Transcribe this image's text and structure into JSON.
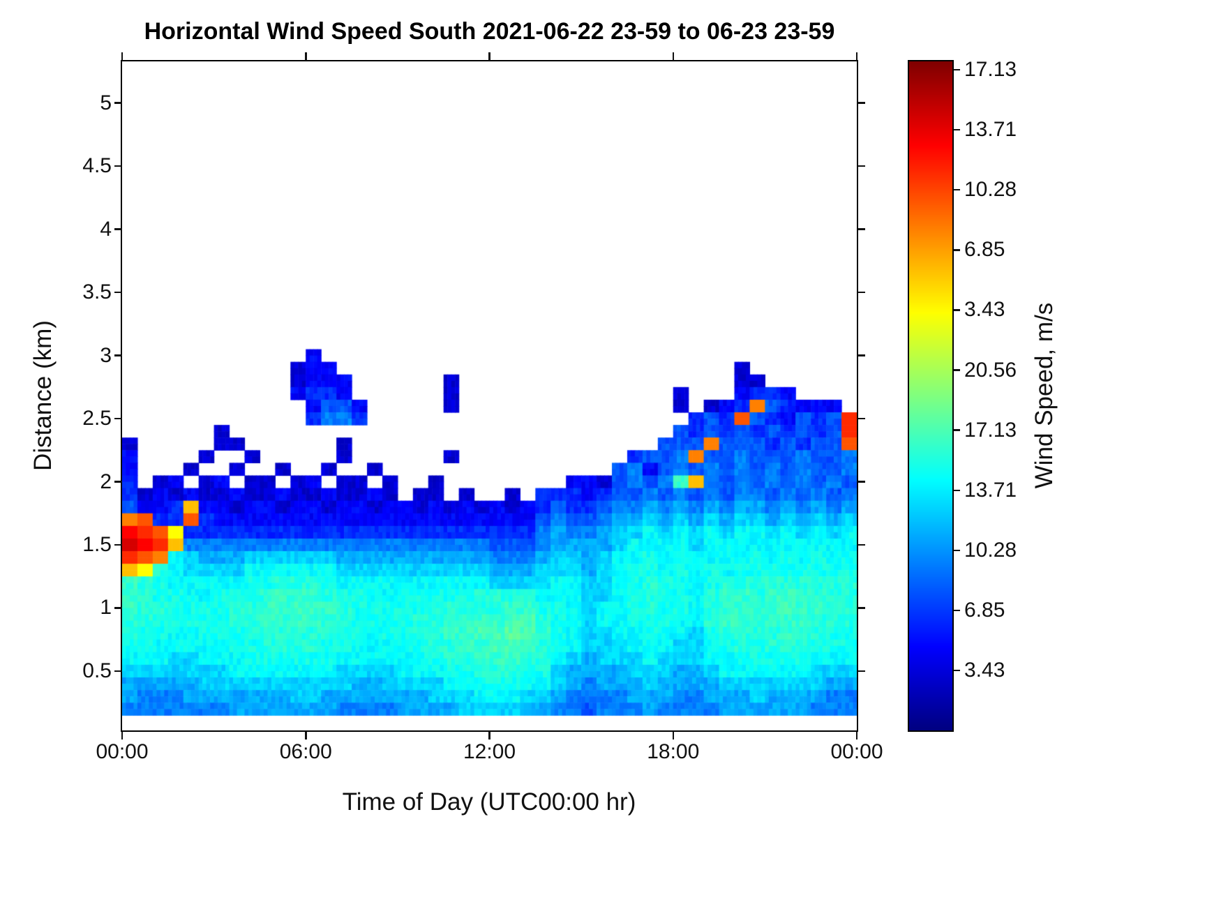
{
  "chart_data": {
    "type": "heatmap",
    "title": "Horizontal Wind Speed South 2021-06-22 23-59 to 06-23 23-59",
    "xlabel": "Time of Day (UTC00:00 hr)",
    "ylabel": "Distance (km)",
    "xlim": [
      0,
      24
    ],
    "ylim": [
      0.03,
      5.33
    ],
    "xtick_values": [
      0,
      6,
      12,
      18,
      24
    ],
    "xtick_labels": [
      "00:00",
      "06:00",
      "12:00",
      "18:00",
      "00:00"
    ],
    "ytick_values": [
      0.5,
      1,
      1.5,
      2,
      2.5,
      3,
      3.5,
      4,
      4.5,
      5
    ],
    "ytick_labels": [
      "0.5",
      "1",
      "1.5",
      "2",
      "2.5",
      "3",
      "3.5",
      "4",
      "4.5",
      "5"
    ],
    "grid_on": false,
    "legend": "colorbar-right",
    "colormap": "jet",
    "color_scale": {
      "vmin": 0,
      "vmax": 24,
      "units": "m/s"
    },
    "colorbar": {
      "label": "Wind Speed, m/s",
      "tick_labels_top_to_bottom": [
        "17.13",
        "13.71",
        "10.28",
        "6.85",
        "3.43",
        "20.56",
        "17.13",
        "13.71",
        "10.28",
        "6.85",
        "3.43"
      ],
      "tick_top_fraction": 0.0125,
      "tick_step_fraction": 0.0898
    },
    "grid": {
      "time_bins": 48,
      "time_bin_hours": 0.5,
      "distance_bin_km": 0.1,
      "no_data_char": ".",
      "value_encoding": "each char is one 30-min time bin; '.' = no data (white); otherwise wind speed in m/s from char_values",
      "char_values": {
        "0": 0,
        "1": 1,
        "2": 2,
        "3": 3,
        "4": 4,
        "5": 5,
        "6": 6,
        "7": 7,
        "8": 8,
        "9": 9,
        "a": 9.4,
        "b": 9.8,
        "c": 10.2,
        "d": 10.6,
        "e": 11,
        "f": 13,
        "g": 15,
        "h": 16.5,
        "i": 18,
        "j": 19,
        "k": 20,
        "l": 21,
        "m": 22
      },
      "rows": [
        {
          "km": 3.0,
          "cells": [
            "............",
            "3...........",
            "............",
            "............"
          ]
        },
        {
          "km": 2.9,
          "cells": [
            "...........2",
            "33..........",
            "............",
            "....2......."
          ]
        },
        {
          "km": 2.8,
          "cells": [
            "...........2",
            "333......2..",
            "............",
            "....22......"
          ]
        },
        {
          "km": 2.7,
          "cells": [
            "...........3",
            "443......2..",
            "............",
            "2...3443...."
          ]
        },
        {
          "km": 2.6,
          "cells": [
            "............",
            "3553.....2..",
            "............",
            "2.234i54333."
          ]
        },
        {
          "km": 2.5,
          "cells": [
            "............",
            "4664........",
            "............",
            ".454j543545k"
          ]
        },
        {
          "km": 2.4,
          "cells": [
            "......2.....",
            "............",
            "............",
            "54545454545k"
          ]
        },
        {
          "km": 2.3,
          "cells": [
            "2.....22....",
            "..2.........",
            "...........5",
            "55i55545455j"
          ]
        },
        {
          "km": 2.2,
          "cells": [
            "3....2..2...",
            "..2......2..",
            ".........455",
            "6i5565556556"
          ]
        },
        {
          "km": 2.1,
          "cells": [
            "3...2..2..2.",
            ".2..2.......",
            "........5635",
            "656565656556"
          ]
        },
        {
          "km": 2.0,
          "cells": [
            "4.23.23.22.2",
            "3.22.2..2...",
            ".....3325656",
            "ch6565656565"
          ]
        },
        {
          "km": 1.9,
          "cells": [
            "423232232232",
            "232232.22.2.",
            ".2.444345565",
            "656566565656"
          ]
        },
        {
          "km": 1.8,
          "cells": [
            "5334h3323323",
            "323323323232",
            "323454456676",
            "767677676767"
          ]
        },
        {
          "km": 1.7,
          "cells": [
            "ij44j4333333",
            "333333333333",
            "333565567787",
            "878788787878"
          ]
        },
        {
          "km": 1.6,
          "cells": [
            "lkjg44444444",
            "444444444444",
            "444676678898",
            "989899898989"
          ]
        },
        {
          "km": 1.5,
          "cells": [
            "mlkh66666666",
            "666666666666",
            "555677778999",
            "989999999999"
          ]
        },
        {
          "km": 1.4,
          "cells": [
            "kji987778888",
            "887777777777",
            "6667887899a9",
            "99999a9a9a9a"
          ]
        },
        {
          "km": 1.3,
          "cells": [
            "hgb988889999",
            "998888888888",
            "777888789aa9",
            "a9a9aaaaaaaa"
          ]
        },
        {
          "km": 1.2,
          "cells": [
            "cba99999aabb",
            "ba9999999999",
            "888899889aba",
            "a9abbbbbbbbb"
          ]
        },
        {
          "km": 1.1,
          "cells": [
            "cbaa99aabbcc",
            "cbaa99aaaaab",
            "bbb999889aba",
            "a9bccbcccbbb"
          ]
        },
        {
          "km": 1.0,
          "cells": [
            "cbbaaaabbccd",
            "ccbaaaaabbbb",
            "bccaa9899aba",
            "a9bccccdccbb"
          ]
        },
        {
          "km": 0.9,
          "cells": [
            "bbaaaaabbccc",
            "cbbaaaabbbcc",
            "cddba9899aaa",
            "99bccccccbbb"
          ]
        },
        {
          "km": 0.8,
          "cells": [
            "baa99aaabbbb",
            "bbaa9aabbccd",
            "dedca98899a9",
            "98abbbbcbbaa"
          ]
        },
        {
          "km": 0.7,
          "cells": [
            "aa99999aabbb",
            "baa999aabbcc",
            "ddcba9888999",
            "889ababbbaaa"
          ]
        },
        {
          "km": 0.6,
          "cells": [
            "99988999aaaa",
            "aa99999aabbc",
            "ccbb98788898",
            "8899aaaaa999"
          ]
        },
        {
          "km": 0.5,
          "cells": [
            "888888899999",
            "998888999aab",
            "bbaa87777888",
            "778999999888"
          ]
        },
        {
          "km": 0.4,
          "cells": [
            "777778888888",
            "88877888899a",
            "aa9987677787",
            "777888888877"
          ]
        },
        {
          "km": 0.3,
          "cells": [
            "766677777778",
            "877777778889",
            "998876666777",
            "667778777766"
          ]
        },
        {
          "km": 0.2,
          "cells": [
            "666666677777",
            "776666777788",
            "887766566676",
            "666777777666"
          ]
        }
      ]
    }
  }
}
